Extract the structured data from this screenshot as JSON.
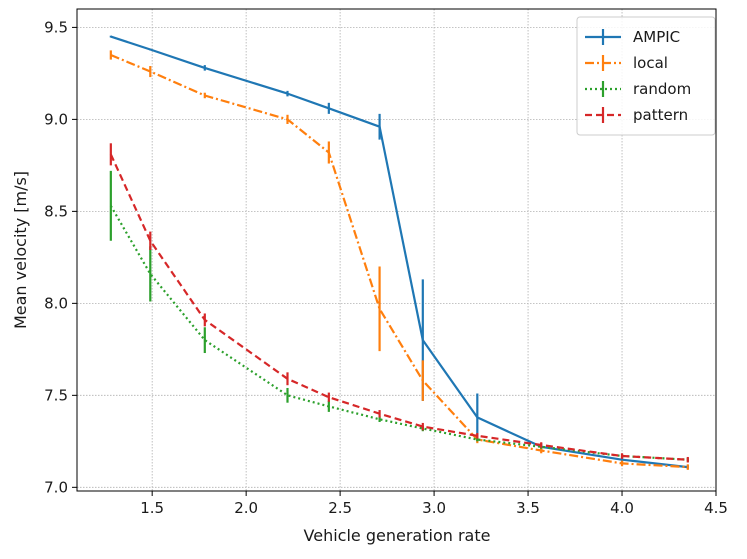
{
  "chart_data": {
    "type": "line",
    "title": "",
    "xlabel": "Vehicle generation rate",
    "ylabel": "Mean velocity [m/s]",
    "xlim": [
      1.1,
      4.5
    ],
    "ylim": [
      6.98,
      9.6
    ],
    "xticks": [
      1.5,
      2.0,
      2.5,
      3.0,
      3.5,
      4.0,
      4.5
    ],
    "xtick_labels": [
      "1.5",
      "2.0",
      "2.5",
      "3.0",
      "3.5",
      "4.0",
      "4.5"
    ],
    "yticks": [
      7.0,
      7.5,
      8.0,
      8.5,
      9.0,
      9.5
    ],
    "ytick_labels": [
      "7.0",
      "7.5",
      "8.0",
      "8.5",
      "9.0",
      "9.5"
    ],
    "grid": true,
    "legend_position": "top-right",
    "x": [
      1.28,
      1.49,
      1.78,
      2.22,
      2.44,
      2.71,
      2.94,
      3.23,
      3.57,
      4.0,
      4.35
    ],
    "series": [
      {
        "name": "AMPIC",
        "color": "#1f77b4",
        "dash": "solid",
        "values": [
          9.45,
          9.38,
          9.28,
          9.14,
          9.06,
          8.96,
          7.8,
          7.38,
          7.22,
          7.15,
          7.11
        ],
        "errors": [
          0.005,
          0.005,
          0.015,
          0.015,
          0.03,
          0.07,
          0.33,
          0.13,
          0.02,
          0.02,
          0.01
        ]
      },
      {
        "name": "local",
        "color": "#ff7f0e",
        "dash": "dashdot",
        "values": [
          9.35,
          9.26,
          9.13,
          9.0,
          8.82,
          7.97,
          7.58,
          7.26,
          7.2,
          7.13,
          7.11
        ],
        "errors": [
          0.025,
          0.03,
          0.015,
          0.025,
          0.06,
          0.23,
          0.11,
          0.02,
          0.015,
          0.015,
          0.015
        ]
      },
      {
        "name": "random",
        "color": "#2ca02c",
        "dash": "dotted",
        "values": [
          8.53,
          8.16,
          7.8,
          7.5,
          7.44,
          7.37,
          7.32,
          7.26,
          7.22,
          7.17,
          7.15
        ],
        "errors": [
          0.19,
          0.15,
          0.07,
          0.04,
          0.03,
          0.015,
          0.015,
          0.01,
          0.01,
          0.01,
          0.01
        ]
      },
      {
        "name": "pattern",
        "color": "#d62728",
        "dash": "dashed",
        "values": [
          8.81,
          8.34,
          7.91,
          7.59,
          7.49,
          7.4,
          7.33,
          7.28,
          7.23,
          7.17,
          7.15
        ],
        "errors": [
          0.06,
          0.05,
          0.035,
          0.035,
          0.025,
          0.02,
          0.02,
          0.015,
          0.015,
          0.015,
          0.015
        ]
      }
    ]
  }
}
